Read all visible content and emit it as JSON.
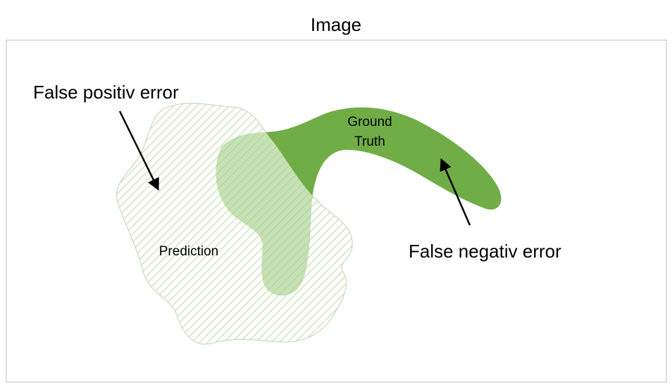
{
  "title": "Image",
  "labels": {
    "false_positive": "False positiv error",
    "false_negative": "False negativ error",
    "prediction": "Prediction",
    "ground_truth_line1": "Ground",
    "ground_truth_line2": "Truth"
  },
  "colors": {
    "frame_border": "#bfbfbf",
    "prediction_hatch": "#a9d18e",
    "prediction_outline": "#c5dcb9",
    "ground_truth_fill": "#70ad47",
    "overlap_fill": "#a9d18e",
    "arrow": "#000000"
  }
}
